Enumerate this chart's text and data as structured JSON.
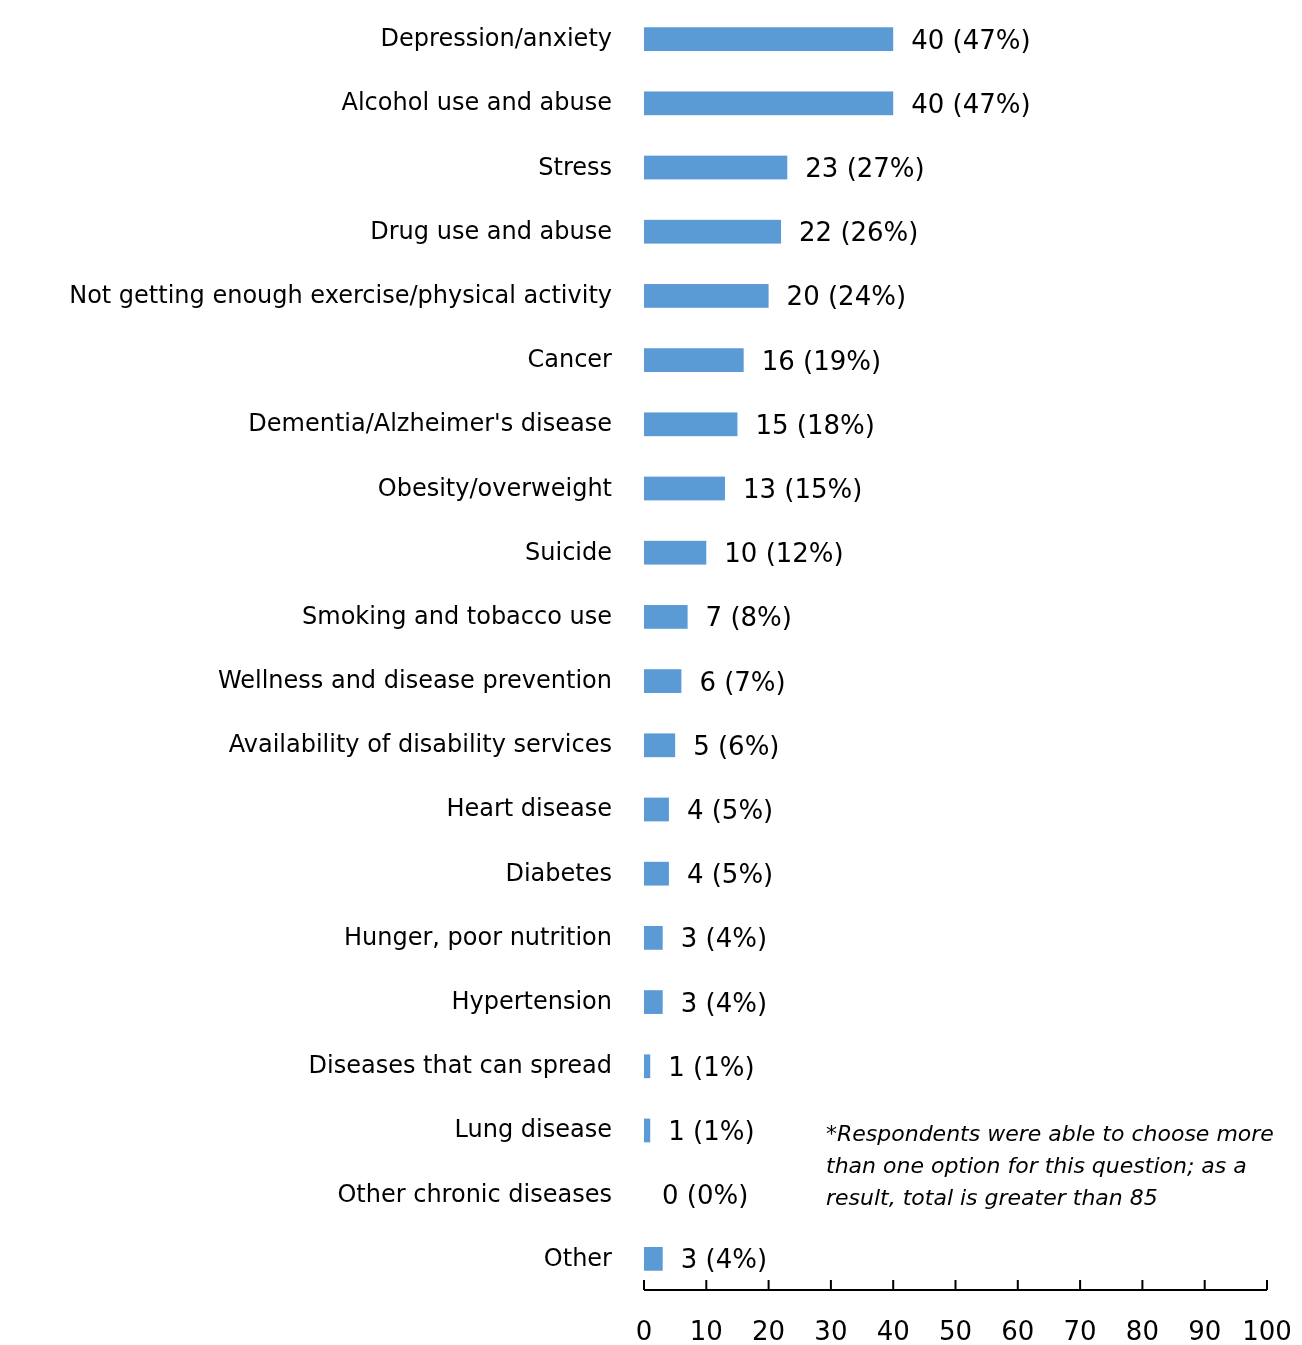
{
  "chart_data": {
    "type": "bar",
    "orientation": "horizontal",
    "categories": [
      "Depression/anxiety",
      "Alcohol use and abuse",
      "Stress",
      "Drug use and abuse",
      "Not getting enough exercise/physical activity",
      "Cancer",
      "Dementia/Alzheimer's disease",
      "Obesity/overweight",
      "Suicide",
      "Smoking and tobacco use",
      "Wellness and disease prevention",
      "Availability of disability services",
      "Heart disease",
      "Diabetes",
      "Hunger, poor nutrition",
      "Hypertension",
      "Diseases that can spread",
      "Lung disease",
      "Other chronic diseases",
      "Other"
    ],
    "values": [
      40,
      40,
      23,
      22,
      20,
      16,
      15,
      13,
      10,
      7,
      6,
      5,
      4,
      4,
      3,
      3,
      1,
      1,
      0,
      3
    ],
    "value_labels": [
      "40 (47%)",
      "40 (47%)",
      "23 (27%)",
      "22 (26%)",
      "20 (24%)",
      "16 (19%)",
      "15 (18%)",
      "13 (15%)",
      "10 (12%)",
      "7 (8%)",
      "6 (7%)",
      "5 (6%)",
      "4 (5%)",
      "4 (5%)",
      "3 (4%)",
      "3 (4%)",
      "1 (1%)",
      "1 (1%)",
      "0 (0%)",
      "3 (4%)"
    ],
    "color": "#5b9bd5",
    "xlim": [
      0,
      100
    ],
    "xticks": [
      0,
      10,
      20,
      30,
      40,
      50,
      60,
      70,
      80,
      90,
      100
    ],
    "annotations": [
      "*Respondents were able to choose more than one option for this question; as a result, total is greater than 85"
    ]
  }
}
